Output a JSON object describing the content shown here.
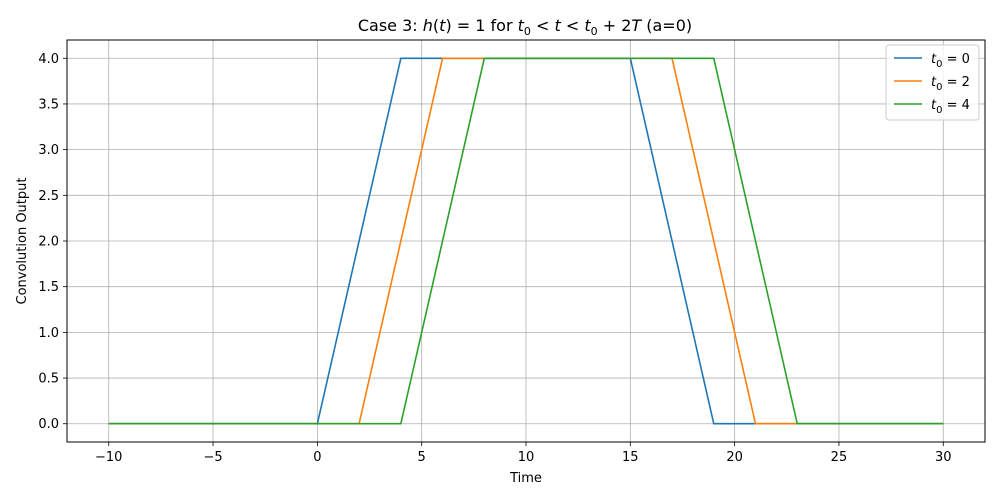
{
  "chart_data": {
    "type": "line",
    "title": "Case 3: h(t) = 1 for t₀ < t < t₀ + 2T (a=0)",
    "title_parts": {
      "prefix": "Case 3: ",
      "h": "h",
      "open": "(",
      "t": "t",
      "close_eq": ") = 1 for ",
      "t0a": "t",
      "sub0a": "0",
      "lt1": " < ",
      "tmid": "t",
      "lt2": " < ",
      "t0b": "t",
      "sub0b": "0",
      "plus": " + 2",
      "T": "T",
      "suffix": " (a=0)"
    },
    "xlabel": "Time",
    "ylabel": "Convolution Output",
    "xlim": [
      -12,
      32
    ],
    "ylim": [
      -0.2,
      4.2
    ],
    "xticks": [
      -10,
      -5,
      0,
      5,
      10,
      15,
      20,
      25,
      30
    ],
    "xtick_labels": [
      "−10",
      "−5",
      "0",
      "5",
      "10",
      "15",
      "20",
      "25",
      "30"
    ],
    "yticks": [
      0.0,
      0.5,
      1.0,
      1.5,
      2.0,
      2.5,
      3.0,
      3.5,
      4.0
    ],
    "ytick_labels": [
      "0.0",
      "0.5",
      "1.0",
      "1.5",
      "2.0",
      "2.5",
      "3.0",
      "3.5",
      "4.0"
    ],
    "grid": true,
    "legend_position": "top-right",
    "series": [
      {
        "name": "t₀ = 0",
        "legend_main": "t",
        "legend_sub": "0",
        "legend_value": " = 0",
        "color": "#1f77b4",
        "x": [
          -10,
          0,
          4,
          15,
          19,
          30
        ],
        "y": [
          0,
          0,
          4,
          4,
          0,
          0
        ]
      },
      {
        "name": "t₀ = 2",
        "legend_main": "t",
        "legend_sub": "0",
        "legend_value": " = 2",
        "color": "#ff7f0e",
        "x": [
          -10,
          2,
          6,
          17,
          21,
          30
        ],
        "y": [
          0,
          0,
          4,
          4,
          0,
          0
        ]
      },
      {
        "name": "t₀ = 4",
        "legend_main": "t",
        "legend_sub": "0",
        "legend_value": " = 4",
        "color": "#2ca02c",
        "x": [
          -10,
          4,
          8,
          19,
          23,
          30
        ],
        "y": [
          0,
          0,
          4,
          4,
          0,
          0
        ]
      }
    ]
  }
}
